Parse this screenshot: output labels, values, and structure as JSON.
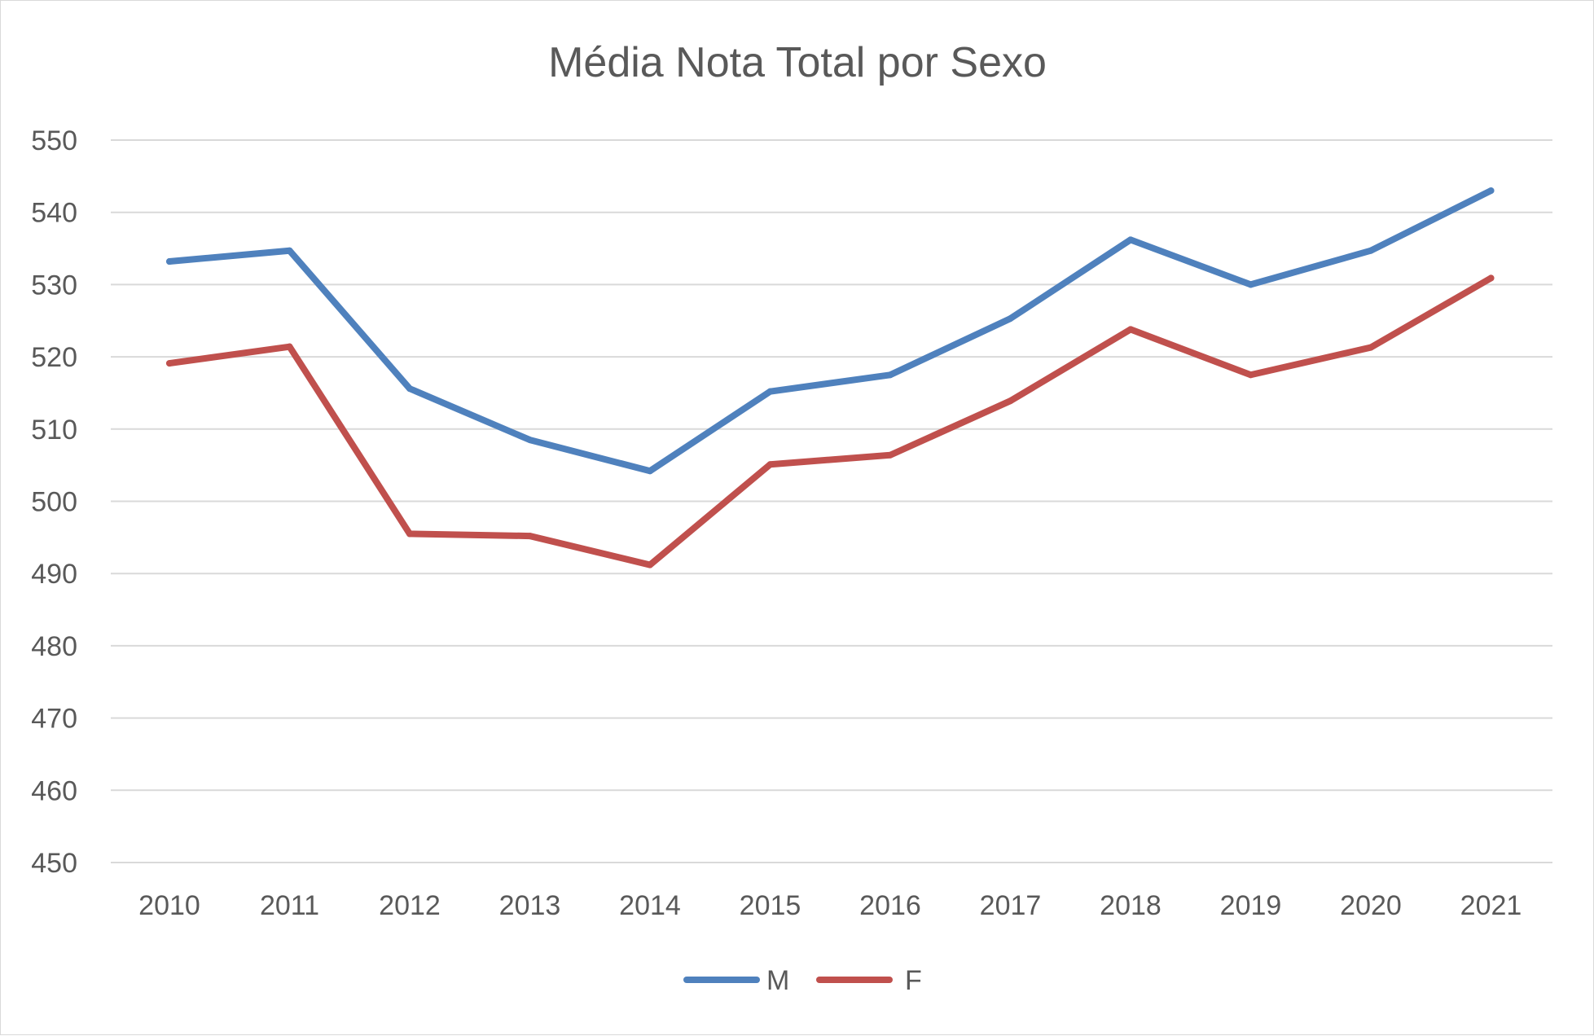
{
  "chart_data": {
    "type": "line",
    "title": "Média Nota Total por Sexo",
    "xlabel": "",
    "ylabel": "",
    "categories": [
      "2010",
      "2011",
      "2012",
      "2013",
      "2014",
      "2015",
      "2016",
      "2017",
      "2018",
      "2019",
      "2020",
      "2021"
    ],
    "series": [
      {
        "name": "M",
        "color": "#4f81bd",
        "values": [
          533.2,
          534.7,
          515.6,
          508.5,
          504.2,
          515.2,
          517.5,
          525.3,
          536.2,
          530.0,
          534.7,
          543.0
        ]
      },
      {
        "name": "F",
        "color": "#c0504d",
        "values": [
          519.1,
          521.4,
          495.5,
          495.2,
          491.2,
          505.1,
          506.4,
          513.9,
          523.8,
          517.5,
          521.3,
          530.9
        ]
      }
    ],
    "ylim": [
      450,
      550
    ],
    "yticks": [
      "450",
      "460",
      "470",
      "480",
      "490",
      "500",
      "510",
      "520",
      "530",
      "540",
      "550"
    ],
    "grid": true,
    "legend": "bottom"
  }
}
